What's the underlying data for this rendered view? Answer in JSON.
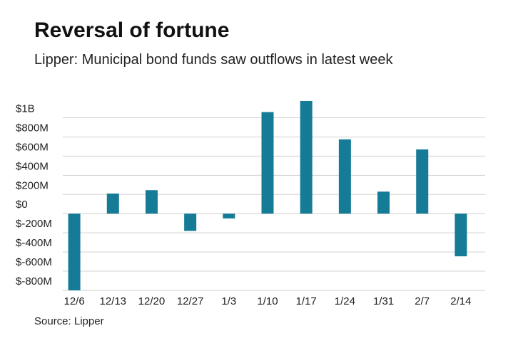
{
  "chart_data": {
    "type": "bar",
    "title": "Reversal of fortune",
    "subtitle": "Lipper: Municipal bond funds saw outflows in latest week",
    "source": "Source: Lipper",
    "categories": [
      "12/6",
      "12/13",
      "12/20",
      "12/27",
      "1/3",
      "1/10",
      "1/17",
      "1/24",
      "1/31",
      "2/7",
      "2/14"
    ],
    "values": [
      -800,
      210,
      245,
      -180,
      -50,
      1060,
      1175,
      775,
      230,
      670,
      -445
    ],
    "color": "#157b96",
    "ylim": [
      -800,
      1200
    ],
    "yticks": [
      {
        "value": 1000,
        "label": "$1B"
      },
      {
        "value": 800,
        "label": "$800M"
      },
      {
        "value": 600,
        "label": "$600M"
      },
      {
        "value": 400,
        "label": "$400M"
      },
      {
        "value": 200,
        "label": "$200M"
      },
      {
        "value": 0,
        "label": "$0"
      },
      {
        "value": -200,
        "label": "$-200M"
      },
      {
        "value": -400,
        "label": "$-400M"
      },
      {
        "value": -600,
        "label": "$-600M"
      },
      {
        "value": -800,
        "label": "$-800M"
      }
    ],
    "grid": true
  }
}
